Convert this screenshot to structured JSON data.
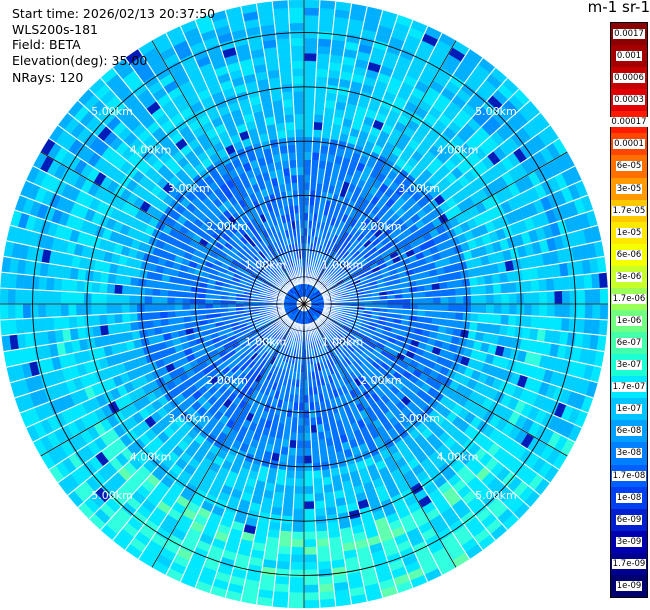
{
  "info": {
    "start_time": "Start time: 2026/02/13 20:37:50",
    "device": "WLS200s-181",
    "field": "Field: BETA",
    "elevation": "Elevation(deg): 35.00",
    "nrays": "NRays: 120"
  },
  "colorbar": {
    "title": "m-1 sr-1",
    "levels": [
      {
        "label": "0.0017",
        "color": "#8b0000"
      },
      {
        "label": "0.001",
        "color": "#a50000"
      },
      {
        "label": "0.0006",
        "color": "#c40000"
      },
      {
        "label": "0.0003",
        "color": "#e00000"
      },
      {
        "label": "0.00017",
        "color": "#ff1a00"
      },
      {
        "label": "0.0001",
        "color": "#ff4600"
      },
      {
        "label": "6e-05",
        "color": "#ff7000"
      },
      {
        "label": "3e-05",
        "color": "#ff9a00"
      },
      {
        "label": "1.7e-05",
        "color": "#ffc800"
      },
      {
        "label": "1e-05",
        "color": "#ffe800"
      },
      {
        "label": "6e-06",
        "color": "#f4ff00"
      },
      {
        "label": "3e-06",
        "color": "#c8ff2a"
      },
      {
        "label": "1.7e-06",
        "color": "#9cff55"
      },
      {
        "label": "1e-06",
        "color": "#70ff80"
      },
      {
        "label": "6e-07",
        "color": "#44ffaa"
      },
      {
        "label": "3e-07",
        "color": "#1affd4"
      },
      {
        "label": "1.7e-07",
        "color": "#00e8ff"
      },
      {
        "label": "1e-07",
        "color": "#00c4ff"
      },
      {
        "label": "6e-08",
        "color": "#00a0ff"
      },
      {
        "label": "3e-08",
        "color": "#0080ff"
      },
      {
        "label": "1.7e-08",
        "color": "#0060ff"
      },
      {
        "label": "1e-08",
        "color": "#0040f0"
      },
      {
        "label": "6e-09",
        "color": "#0020d0"
      },
      {
        "label": "3e-09",
        "color": "#0000b0"
      },
      {
        "label": "1.7e-09",
        "color": "#000090"
      },
      {
        "label": "1e-09",
        "color": "#000070"
      }
    ]
  },
  "chart_data": {
    "type": "heatmap",
    "projection": "polar",
    "nrays": 120,
    "range_rings_km": [
      1,
      2,
      3,
      4,
      5
    ],
    "max_range_km": 5.6,
    "ring_labels": [
      "1.00km",
      "2.00km",
      "3.00km",
      "4.00km",
      "5.00km"
    ],
    "radial_lines_deg": [
      0,
      30,
      60,
      90,
      120,
      150,
      180,
      210,
      240,
      270,
      300,
      330
    ],
    "color_scale": "log",
    "value_range": [
      1e-09,
      0.0017
    ],
    "dominant_value_range": [
      1e-08,
      3e-07
    ],
    "grid": true
  }
}
